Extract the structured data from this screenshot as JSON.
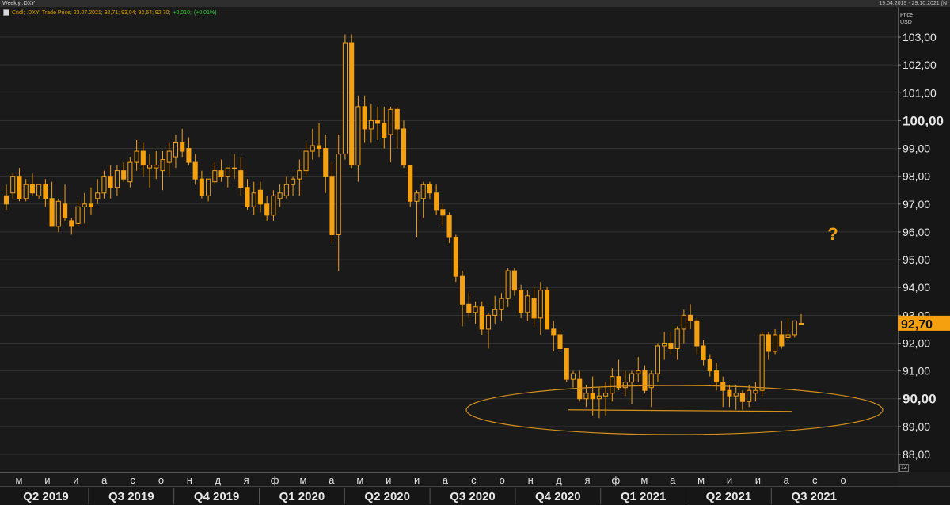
{
  "window": {
    "title": "Weekly .DXY",
    "date_range": "19.04.2019 - 29.10.2021 (N"
  },
  "legend_line": {
    "label": "Cndl; .DXY; Trade Price; 23.07.2021; 92,71; 93,04; 92,64; 92,70;",
    "change_abs": "+0,010;",
    "change_pct": "(+0,01%)"
  },
  "axis": {
    "y_header": "Price",
    "y_unit": "USD",
    "scale_badge": "12"
  },
  "annotation": {
    "question_mark": "?"
  },
  "colors": {
    "candle": "#f5a00f",
    "last_price_bg": "#f5a00f",
    "ellipse": "#d4901a",
    "grid": "#333333"
  },
  "chart_data": {
    "type": "candlestick",
    "title": "Weekly .DXY",
    "ylabel": "Price USD",
    "ylim": [
      87.7,
      103.5
    ],
    "yticks": [
      "88,00",
      "89,00",
      "90,00",
      "91,00",
      "92,00",
      "93,00",
      "94,00",
      "95,00",
      "96,00",
      "97,00",
      "98,00",
      "99,00",
      "100,00",
      "101,00",
      "102,00",
      "103,00"
    ],
    "ytick_values": [
      88,
      89,
      90,
      91,
      92,
      93,
      94,
      95,
      96,
      97,
      98,
      99,
      100,
      101,
      102,
      103
    ],
    "bold_ticks": [
      90,
      100
    ],
    "last_price": 92.7,
    "last_price_label": "92,70",
    "month_labels": [
      "м",
      "и",
      "и",
      "а",
      "с",
      "о",
      "н",
      "д",
      "я",
      "ф",
      "м",
      "а",
      "м",
      "и",
      "и",
      "а",
      "с",
      "о",
      "н",
      "д",
      "я",
      "ф",
      "м",
      "а",
      "м",
      "и",
      "и",
      "а",
      "с",
      "о"
    ],
    "quarter_labels": [
      "Q2 2019",
      "Q3 2019",
      "Q4 2019",
      "Q1 2020",
      "Q2 2020",
      "Q3 2020",
      "Q4 2020",
      "Q1 2021",
      "Q2 2021",
      "Q3 2021"
    ],
    "support_level": 89.6,
    "ohlc": [
      [
        97.3,
        97.7,
        96.8,
        97.0
      ],
      [
        97.4,
        98.1,
        97.2,
        98.0
      ],
      [
        98.0,
        98.3,
        97.1,
        97.2
      ],
      [
        97.2,
        97.9,
        97.1,
        97.7
      ],
      [
        97.7,
        98.1,
        97.3,
        97.4
      ],
      [
        97.3,
        97.7,
        97.2,
        97.7
      ],
      [
        97.7,
        97.9,
        96.9,
        97.2
      ],
      [
        97.2,
        97.8,
        96.2,
        96.2
      ],
      [
        96.2,
        97.2,
        96.0,
        97.1
      ],
      [
        97.0,
        97.7,
        96.4,
        96.5
      ],
      [
        96.4,
        96.5,
        95.9,
        96.2
      ],
      [
        96.3,
        97.1,
        96.2,
        96.9
      ],
      [
        96.9,
        97.4,
        96.3,
        97.0
      ],
      [
        97.0,
        97.6,
        96.6,
        96.9
      ],
      [
        97.2,
        97.9,
        97.0,
        97.4
      ],
      [
        97.4,
        98.2,
        97.2,
        98.0
      ],
      [
        98.0,
        98.4,
        97.2,
        97.6
      ],
      [
        97.6,
        98.4,
        97.3,
        98.2
      ],
      [
        98.2,
        98.5,
        97.8,
        97.9
      ],
      [
        97.8,
        98.7,
        97.6,
        98.5
      ],
      [
        98.5,
        99.3,
        98.2,
        98.9
      ],
      [
        98.9,
        99.2,
        98.0,
        98.4
      ],
      [
        98.3,
        98.8,
        97.6,
        98.4
      ],
      [
        98.3,
        98.9,
        97.9,
        98.4
      ],
      [
        98.2,
        98.9,
        97.5,
        98.6
      ],
      [
        98.5,
        99.2,
        98.0,
        98.9
      ],
      [
        98.7,
        99.5,
        98.3,
        99.2
      ],
      [
        99.2,
        99.7,
        98.7,
        98.9
      ],
      [
        99.0,
        99.4,
        98.4,
        98.5
      ],
      [
        98.5,
        98.8,
        97.7,
        97.9
      ],
      [
        97.9,
        98.2,
        97.2,
        97.3
      ],
      [
        97.3,
        97.9,
        97.1,
        97.9
      ],
      [
        97.8,
        98.5,
        97.7,
        98.2
      ],
      [
        98.2,
        98.6,
        97.8,
        98.0
      ],
      [
        98.0,
        98.3,
        97.6,
        98.3
      ],
      [
        98.3,
        98.8,
        97.9,
        98.3
      ],
      [
        98.2,
        98.7,
        97.3,
        97.6
      ],
      [
        97.6,
        97.9,
        96.8,
        96.9
      ],
      [
        96.9,
        97.8,
        96.6,
        97.4
      ],
      [
        97.5,
        97.8,
        96.7,
        97.0
      ],
      [
        97.0,
        97.3,
        96.4,
        96.6
      ],
      [
        96.6,
        97.5,
        96.4,
        97.3
      ],
      [
        97.2,
        97.7,
        96.9,
        97.4
      ],
      [
        97.3,
        98.0,
        97.2,
        97.7
      ],
      [
        97.7,
        98.0,
        97.3,
        97.9
      ],
      [
        97.9,
        98.6,
        97.3,
        98.2
      ],
      [
        98.2,
        99.2,
        98.0,
        98.9
      ],
      [
        98.9,
        99.7,
        98.6,
        99.1
      ],
      [
        99.1,
        99.9,
        98.7,
        99.0
      ],
      [
        99.0,
        99.5,
        97.4,
        98.0
      ],
      [
        98.0,
        98.5,
        95.6,
        95.9
      ],
      [
        95.9,
        99.5,
        94.6,
        98.8
      ],
      [
        98.8,
        103.1,
        98.6,
        102.8
      ],
      [
        102.8,
        103.1,
        98.3,
        98.4
      ],
      [
        98.4,
        100.9,
        97.8,
        100.5
      ],
      [
        100.5,
        100.9,
        99.2,
        99.7
      ],
      [
        99.7,
        100.6,
        99.2,
        100.0
      ],
      [
        100.0,
        100.5,
        99.3,
        99.9
      ],
      [
        99.9,
        100.5,
        99.0,
        99.4
      ],
      [
        99.5,
        100.5,
        98.5,
        100.4
      ],
      [
        100.4,
        100.5,
        99.0,
        99.7
      ],
      [
        99.7,
        100.0,
        98.3,
        98.4
      ],
      [
        98.4,
        98.4,
        96.9,
        97.1
      ],
      [
        97.1,
        97.5,
        95.8,
        97.4
      ],
      [
        97.2,
        97.8,
        96.5,
        97.7
      ],
      [
        97.7,
        97.8,
        97.2,
        97.4
      ],
      [
        97.4,
        97.7,
        96.6,
        96.8
      ],
      [
        96.8,
        97.0,
        96.2,
        96.6
      ],
      [
        96.6,
        96.7,
        95.6,
        95.8
      ],
      [
        95.8,
        95.9,
        94.2,
        94.4
      ],
      [
        94.4,
        94.6,
        92.6,
        93.4
      ],
      [
        93.4,
        93.8,
        92.9,
        93.1
      ],
      [
        93.1,
        93.5,
        92.7,
        93.3
      ],
      [
        93.3,
        93.5,
        92.3,
        92.5
      ],
      [
        92.5,
        93.1,
        91.8,
        93.0
      ],
      [
        93.0,
        93.7,
        92.7,
        93.2
      ],
      [
        93.2,
        93.8,
        92.8,
        93.6
      ],
      [
        93.6,
        94.7,
        93.3,
        94.6
      ],
      [
        94.6,
        94.7,
        93.7,
        93.9
      ],
      [
        93.9,
        94.1,
        92.9,
        93.1
      ],
      [
        93.1,
        93.9,
        92.8,
        93.7
      ],
      [
        93.6,
        94.0,
        92.6,
        92.9
      ],
      [
        92.9,
        94.2,
        92.3,
        93.9
      ],
      [
        93.9,
        94.0,
        92.5,
        92.5
      ],
      [
        92.5,
        92.8,
        91.7,
        92.3
      ],
      [
        92.3,
        92.5,
        91.7,
        91.8
      ],
      [
        91.8,
        91.8,
        90.6,
        90.7
      ],
      [
        90.7,
        91.0,
        90.4,
        90.9
      ],
      [
        90.7,
        91.0,
        89.9,
        90.0
      ],
      [
        90.0,
        90.5,
        89.7,
        90.2
      ],
      [
        90.2,
        90.8,
        89.4,
        90.0
      ],
      [
        90.0,
        90.4,
        89.3,
        90.1
      ],
      [
        90.1,
        90.6,
        89.4,
        90.2
      ],
      [
        90.2,
        91.1,
        89.9,
        90.8
      ],
      [
        90.8,
        91.4,
        90.3,
        90.4
      ],
      [
        90.4,
        91.0,
        90.1,
        90.6
      ],
      [
        90.6,
        91.0,
        89.8,
        90.9
      ],
      [
        90.9,
        91.5,
        90.6,
        91.0
      ],
      [
        91.0,
        91.2,
        90.2,
        90.3
      ],
      [
        90.4,
        91.0,
        89.7,
        90.9
      ],
      [
        90.9,
        92.0,
        90.6,
        91.9
      ],
      [
        91.9,
        92.4,
        91.4,
        92.0
      ],
      [
        92.0,
        92.4,
        91.6,
        91.8
      ],
      [
        91.8,
        92.6,
        91.4,
        92.5
      ],
      [
        92.5,
        93.2,
        92.0,
        93.0
      ],
      [
        93.0,
        93.4,
        92.5,
        92.8
      ],
      [
        92.8,
        92.9,
        91.6,
        91.9
      ],
      [
        91.9,
        92.1,
        91.2,
        91.4
      ],
      [
        91.4,
        91.6,
        90.8,
        91.0
      ],
      [
        91.0,
        91.3,
        90.3,
        90.6
      ],
      [
        90.6,
        90.8,
        89.7,
        90.3
      ],
      [
        90.3,
        90.5,
        89.7,
        90.1
      ],
      [
        90.1,
        90.5,
        89.6,
        90.2
      ],
      [
        90.2,
        90.3,
        89.6,
        89.9
      ],
      [
        89.9,
        90.5,
        89.7,
        90.3
      ],
      [
        90.2,
        90.6,
        89.9,
        90.3
      ],
      [
        90.3,
        92.4,
        90.1,
        92.3
      ],
      [
        92.3,
        92.4,
        91.4,
        91.7
      ],
      [
        91.7,
        92.5,
        91.6,
        92.3
      ],
      [
        92.3,
        92.8,
        91.8,
        91.9
      ],
      [
        92.2,
        92.9,
        92.1,
        92.3
      ],
      [
        92.3,
        92.8,
        92.2,
        92.8
      ],
      [
        92.71,
        93.04,
        92.64,
        92.7
      ]
    ]
  }
}
